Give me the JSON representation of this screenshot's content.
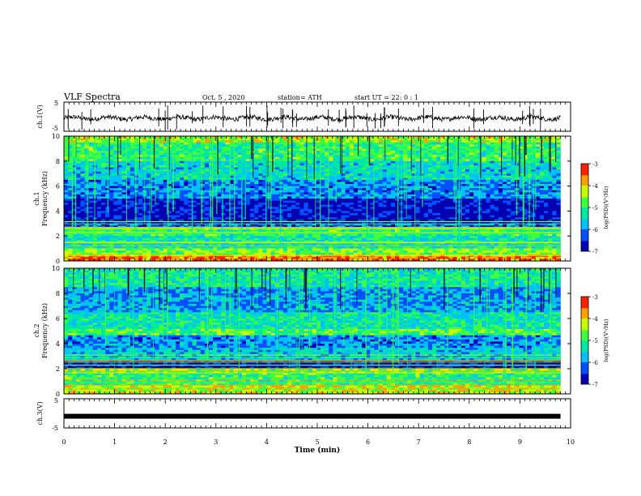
{
  "header": {
    "title": "VLF Spectra",
    "date": "Oct. 5 , 2020",
    "station": "station= ATH",
    "start_ut": "start UT =  22: 0  : 1"
  },
  "chart_data": [
    {
      "type": "line",
      "panel": "ch1-waveform",
      "ylabel": "ch.1(V)",
      "ylim": [
        -5,
        5
      ],
      "yticks": [
        "5",
        "-5"
      ],
      "xlim": [
        0,
        10
      ],
      "series": [
        {
          "description_values_estimated": "noisy signal around -0.5 V with spikes",
          "level": -0.5
        }
      ]
    },
    {
      "type": "heatmap",
      "panel": "ch1-spectrogram",
      "ylabel_line1": "ch.1",
      "ylabel_line2": "Frequency (kHz)",
      "ylim": [
        0,
        10
      ],
      "yticks": [
        "0",
        "2",
        "4",
        "6",
        "8",
        "10"
      ],
      "xlim": [
        0,
        9.8
      ],
      "colorbar": {
        "label": "log(PSD)(V²/Hz)",
        "range": [
          -7,
          -3
        ],
        "ticks": [
          "-3",
          "-4",
          "-5",
          "-6",
          "-7"
        ]
      },
      "bands_khz_log_psd": [
        {
          "f": [
            0,
            0.5
          ],
          "v": -3.6
        },
        {
          "f": [
            0.5,
            1.0
          ],
          "v": -4.6
        },
        {
          "f": [
            1.0,
            2.0
          ],
          "v": -5.3
        },
        {
          "f": [
            2.0,
            2.6
          ],
          "v": -5.0
        },
        {
          "f": [
            2.6,
            3.0
          ],
          "v": -6.2
        },
        {
          "f": [
            3.0,
            5.0
          ],
          "v": -6.7
        },
        {
          "f": [
            5.0,
            6.5
          ],
          "v": -6.0
        },
        {
          "f": [
            6.5,
            8.0
          ],
          "v": -5.5
        },
        {
          "f": [
            8.0,
            9.5
          ],
          "v": -5.0
        },
        {
          "f": [
            9.5,
            10
          ],
          "v": -4.4
        }
      ]
    },
    {
      "type": "heatmap",
      "panel": "ch2-spectrogram",
      "ylabel_line1": "ch.2",
      "ylabel_line2": "Frequency (kHz)",
      "ylim": [
        0,
        10
      ],
      "yticks": [
        "0",
        "2",
        "4",
        "6",
        "8",
        "10"
      ],
      "xlim": [
        0,
        9.8
      ],
      "colorbar": {
        "label": "log(PSD)(V²/Hz)",
        "range": [
          -7,
          -3
        ],
        "ticks": [
          "-3",
          "-4",
          "-5",
          "-6",
          "-7"
        ]
      },
      "bands_khz_log_psd": [
        {
          "f": [
            0,
            0.6
          ],
          "v": -4.2
        },
        {
          "f": [
            0.6,
            1.6
          ],
          "v": -5.0
        },
        {
          "f": [
            1.6,
            2.0
          ],
          "v": -4.6
        },
        {
          "f": [
            2.0,
            2.6
          ],
          "v": -6.6
        },
        {
          "f": [
            2.6,
            3.6
          ],
          "v": -5.6
        },
        {
          "f": [
            3.6,
            4.6
          ],
          "v": -6.0
        },
        {
          "f": [
            4.6,
            5.2
          ],
          "v": -4.8
        },
        {
          "f": [
            5.2,
            6.5
          ],
          "v": -5.3
        },
        {
          "f": [
            6.5,
            8.5
          ],
          "v": -5.9
        },
        {
          "f": [
            8.5,
            10
          ],
          "v": -5.2
        }
      ]
    },
    {
      "type": "line",
      "panel": "ch3-waveform",
      "ylabel": "ch.3(V)",
      "ylim": [
        -5,
        5
      ],
      "yticks": [
        "5",
        "-5"
      ],
      "xlim": [
        0,
        10
      ],
      "series": [
        {
          "description_values_estimated": "flat signal near -1 V",
          "level": -1
        }
      ]
    }
  ],
  "xaxis": {
    "label": "Time (min)",
    "ticks": [
      "0",
      "1",
      "2",
      "3",
      "4",
      "5",
      "6",
      "7",
      "8",
      "9",
      "10"
    ]
  },
  "colors": {
    "colormap": [
      "#0000b0",
      "#0050ff",
      "#00c0ff",
      "#00e8a0",
      "#40ff40",
      "#c8ff00",
      "#ffa000",
      "#ff2000",
      "#ffffff"
    ]
  }
}
